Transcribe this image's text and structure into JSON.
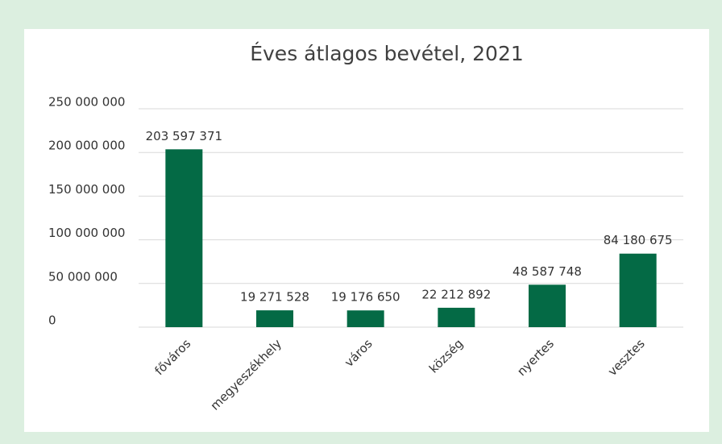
{
  "chart_data": {
    "type": "bar",
    "title": "Éves átlagos bevétel, 2021",
    "categories": [
      "főváros",
      "megyeszékhely",
      "város",
      "község",
      "nyertes",
      "vesztes"
    ],
    "values": [
      203597371,
      19271528,
      19176650,
      22212892,
      48587748,
      84180675
    ],
    "value_labels": [
      "203 597 371",
      "19 271 528",
      "19 176 650",
      "22 212 892",
      "48 587 748",
      "84 180 675"
    ],
    "color": "#046a45",
    "ylim": [
      0,
      250000000
    ],
    "yticks": [
      0,
      {
        "value": 50000000,
        "label": "50 000 000"
      },
      {
        "value": 100000000,
        "label": "100 000 000"
      },
      {
        "value": 150000000,
        "label": "150 000 000"
      },
      {
        "value": 200000000,
        "label": "200 000 000"
      },
      {
        "value": 250000000,
        "label": "250 000 000"
      }
    ],
    "grid": true
  }
}
